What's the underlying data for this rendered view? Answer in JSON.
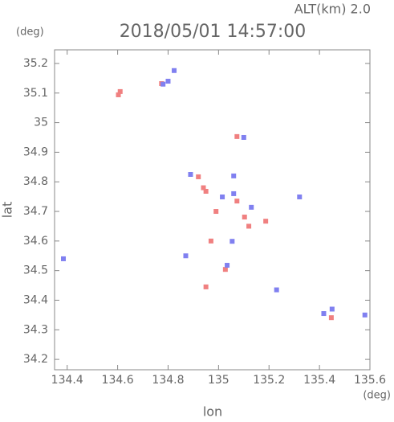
{
  "chart_data": {
    "type": "scatter",
    "header": "ALT(km)  2.0",
    "title": "2018/05/01 14:57:00",
    "y_unit": "(deg)",
    "x_unit": "(deg)",
    "x_label": "lon",
    "y_label": "lat",
    "xlim": [
      134.35,
      135.6
    ],
    "ylim": [
      34.165,
      35.246
    ],
    "xticks": [
      134.4,
      134.6,
      134.8,
      135.0,
      135.2,
      135.4,
      135.6
    ],
    "yticks": [
      34.2,
      34.3,
      34.4,
      34.5,
      34.6,
      34.7,
      34.8,
      34.9,
      35.0,
      35.1,
      35.2
    ],
    "series": [
      {
        "color": "#f08080",
        "x": [
          134.603,
          134.61,
          134.774,
          134.92,
          134.95,
          134.94,
          135.073,
          135.103,
          135.187,
          135.027,
          135.447,
          135.073,
          134.95,
          134.99,
          135.12,
          134.97
        ],
        "values": [
          35.094,
          35.105,
          35.132,
          34.817,
          34.768,
          34.78,
          34.735,
          34.681,
          34.667,
          34.504,
          34.341,
          34.953,
          34.445,
          34.7,
          34.65,
          34.6
        ]
      },
      {
        "color": "#8080f0",
        "x": [
          134.385,
          134.824,
          134.8,
          134.889,
          135.015,
          135.13,
          135.054,
          135.034,
          135.321,
          135.417,
          135.45,
          135.58,
          134.78,
          135.06,
          135.1,
          134.87,
          135.06,
          135.23
        ],
        "values": [
          34.54,
          35.176,
          35.14,
          34.825,
          34.749,
          34.714,
          34.599,
          34.518,
          34.749,
          34.355,
          34.37,
          34.35,
          35.13,
          34.82,
          34.95,
          34.55,
          34.76,
          34.435
        ]
      }
    ]
  }
}
